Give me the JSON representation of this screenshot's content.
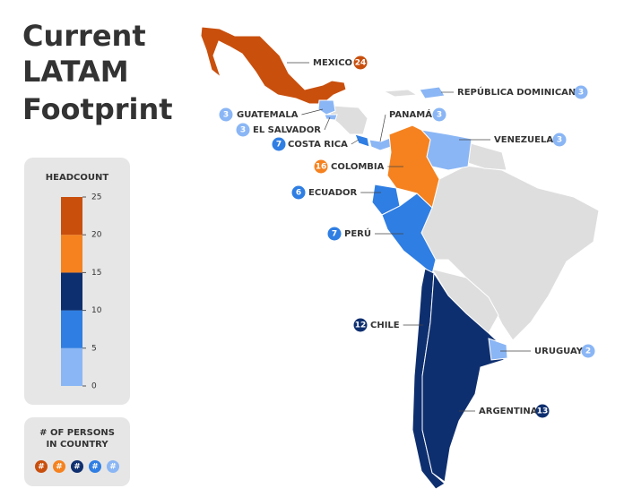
{
  "title": [
    "Current",
    "LATAM",
    "Footprint"
  ],
  "legend": {
    "title": "HEADCOUNT",
    "ticks": [
      0,
      5,
      10,
      15,
      20,
      25
    ],
    "colors": [
      "#8ab6f5",
      "#2f7ee3",
      "#0e2f6f",
      "#f5821f",
      "#c94f0d"
    ]
  },
  "key": {
    "title": [
      "#  OF PERSONS",
      "IN COUNTRY"
    ],
    "symbol": "#"
  },
  "countries": [
    {
      "name": "MEXICO",
      "count": 24
    },
    {
      "name": "REPÚBLICA DOMINICANA",
      "count": 3
    },
    {
      "name": "GUATEMALA",
      "count": 3
    },
    {
      "name": "PANAMÁ",
      "count": 3
    },
    {
      "name": "EL SALVADOR",
      "count": 3
    },
    {
      "name": "COSTA RICA",
      "count": 7
    },
    {
      "name": "VENEZUELA",
      "count": 3
    },
    {
      "name": "COLOMBIA",
      "count": 16
    },
    {
      "name": "ECUADOR",
      "count": 6
    },
    {
      "name": "PERÚ",
      "count": 7
    },
    {
      "name": "CHILE",
      "count": 12
    },
    {
      "name": "URUGUAY",
      "count": 2
    },
    {
      "name": "ARGENTINA",
      "count": 13
    }
  ]
}
